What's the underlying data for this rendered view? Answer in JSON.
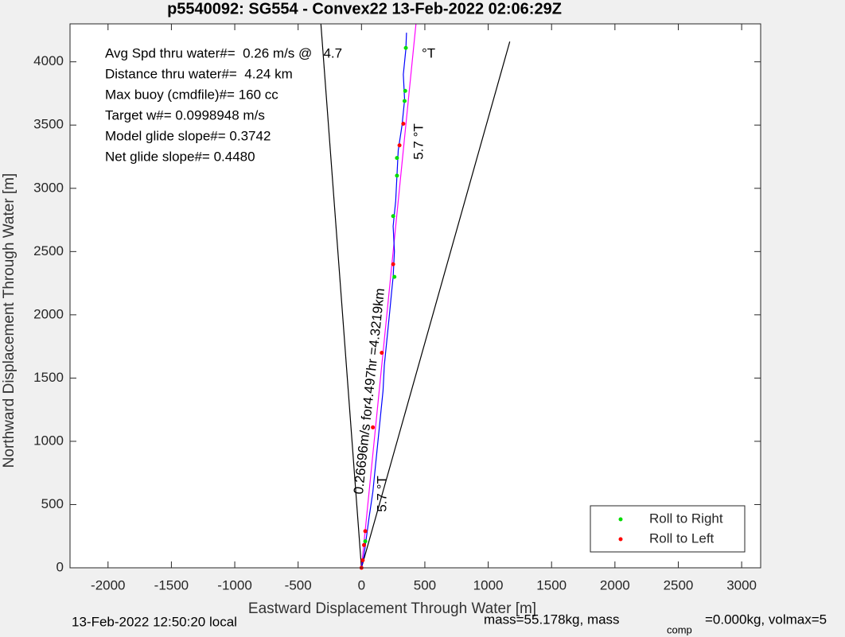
{
  "chart_data": {
    "type": "line",
    "title": "p5540092: SG554 - Convex22 13-Feb-2022 02:06:29Z",
    "x_label": "Eastward Displacement Through Water [m]",
    "y_label": "Northward Displacement Through Water [m]",
    "xlim": [
      -2300,
      3150
    ],
    "ylim": [
      0,
      4300
    ],
    "xticks": [
      -2000,
      -1500,
      -1000,
      -500,
      0,
      500,
      1000,
      1500,
      2000,
      2500,
      3000
    ],
    "yticks": [
      0,
      500,
      1000,
      1500,
      2000,
      2500,
      3000,
      3500,
      4000
    ],
    "grid": false,
    "legend_position": "lower right",
    "lines": [
      {
        "color": "#000000",
        "x": [
          0,
          -320
        ],
        "y": [
          0,
          4300
        ]
      },
      {
        "color": "#000000",
        "x": [
          0,
          1170
        ],
        "y": [
          0,
          4160
        ]
      },
      {
        "color": "#ff00ff",
        "x": [
          0,
          430
        ],
        "y": [
          0,
          4300
        ]
      },
      {
        "color": "#0000ff",
        "x": [
          0,
          20,
          40,
          60,
          90,
          110,
          130,
          150,
          170,
          180,
          200,
          220,
          240,
          250,
          260,
          250,
          270,
          280,
          290,
          320,
          340,
          330,
          350,
          355
        ],
        "y": [
          0,
          100,
          250,
          400,
          600,
          800,
          1000,
          1200,
          1400,
          1600,
          1800,
          2000,
          2200,
          2300,
          2500,
          2700,
          2900,
          3100,
          3300,
          3500,
          3700,
          3900,
          4100,
          4230
        ]
      }
    ],
    "series": [
      {
        "name": "Roll to Right",
        "color": "#00dd00",
        "x": [
          30,
          260,
          250,
          280,
          280,
          340,
          345,
          350
        ],
        "y": [
          210,
          2300,
          2780,
          3100,
          3240,
          3690,
          3770,
          4110
        ]
      },
      {
        "name": "Roll to Left",
        "color": "#ff0000",
        "x": [
          0,
          10,
          20,
          30,
          90,
          160,
          250,
          300,
          330
        ],
        "y": [
          0,
          60,
          180,
          290,
          1110,
          1700,
          2400,
          3340,
          3510
        ]
      }
    ],
    "annotations": [
      "Avg Spd thru water#=  0.26 m/s @   4.7",
      "°T",
      "Distance thru water#=  4.24 km",
      "Max buoy (cmdfile)#= 160 cc",
      "Target w#= 0.0998948 m/s",
      "Model glide slope#= 0.3742",
      "Net glide slope#= 0.4480",
      "5.7 °T",
      "0.26696m/s for4.497hr =4.3219km",
      "5.7 °T"
    ],
    "footer": [
      "13-Feb-2022 12:50:20 local",
      "mass=55.178kg, mass",
      "comp",
      "=0.000kg, volmax=5"
    ]
  }
}
